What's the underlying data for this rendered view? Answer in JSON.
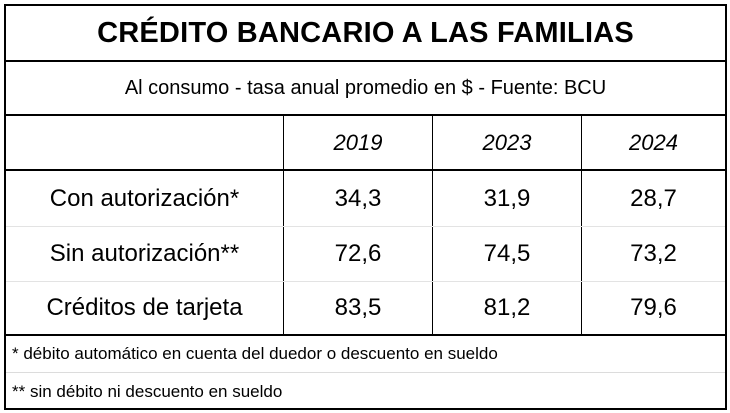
{
  "title": "CRÉDITO BANCARIO A LAS FAMILIAS",
  "subtitle": "Al consumo - tasa anual promedio en $ - Fuente: BCU",
  "table": {
    "years": [
      "2019",
      "2023",
      "2024"
    ],
    "rows": [
      {
        "label": "Con autorización*",
        "values": [
          "34,3",
          "31,9",
          "28,7"
        ]
      },
      {
        "label": "Sin autorización**",
        "values": [
          "72,6",
          "74,5",
          "73,2"
        ]
      },
      {
        "label": "Créditos de tarjeta",
        "values": [
          "83,5",
          "81,2",
          "79,6"
        ]
      }
    ]
  },
  "notes": [
    "* débito automático en cuenta del duedor o descuento en sueldo",
    "** sin débito ni descuento en sueldo"
  ],
  "chart_data": {
    "type": "table",
    "title": "CRÉDITO BANCARIO A LAS FAMILIAS",
    "subtitle": "Al consumo - tasa anual promedio en $ - Fuente: BCU",
    "columns": [
      "2019",
      "2023",
      "2024"
    ],
    "series": [
      {
        "name": "Con autorización*",
        "values": [
          34.3,
          31.9,
          28.7
        ]
      },
      {
        "name": "Sin autorización**",
        "values": [
          72.6,
          74.5,
          73.2
        ]
      },
      {
        "name": "Créditos de tarjeta",
        "values": [
          83.5,
          81.2,
          79.6
        ]
      }
    ]
  }
}
